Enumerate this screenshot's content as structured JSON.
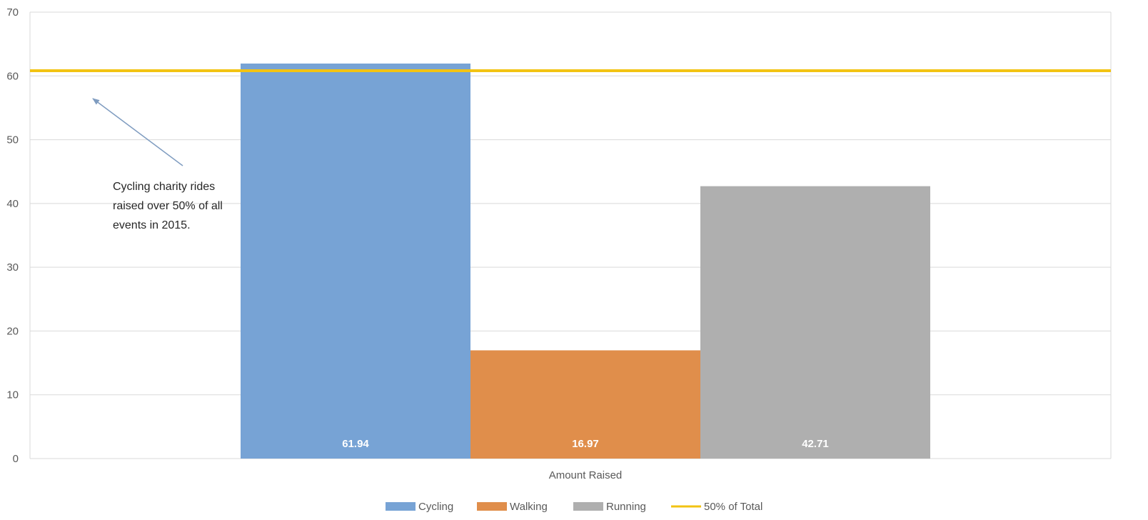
{
  "chart_data": {
    "type": "bar",
    "categories": [
      "Amount Raised"
    ],
    "series": [
      {
        "name": "Cycling",
        "values": [
          61.94
        ],
        "color": "#77A3D5"
      },
      {
        "name": "Walking",
        "values": [
          16.97
        ],
        "color": "#E08E4B"
      },
      {
        "name": "Running",
        "values": [
          42.71
        ],
        "color": "#AFAFAF"
      }
    ],
    "reference_line": {
      "name": "50% of Total",
      "value": 60.81,
      "color": "#F2C313"
    },
    "data_labels": [
      "61.94",
      "16.97",
      "42.71"
    ],
    "y_ticks": [
      "0",
      "10",
      "20",
      "30",
      "40",
      "50",
      "60",
      "70"
    ],
    "ylim": [
      0,
      70
    ],
    "grid": true,
    "legend_position": "bottom",
    "annotation": {
      "lines": [
        "Cycling charity rides",
        "raised over 50% of all",
        "events in 2015."
      ]
    },
    "title": "",
    "xlabel": "",
    "ylabel": ""
  }
}
